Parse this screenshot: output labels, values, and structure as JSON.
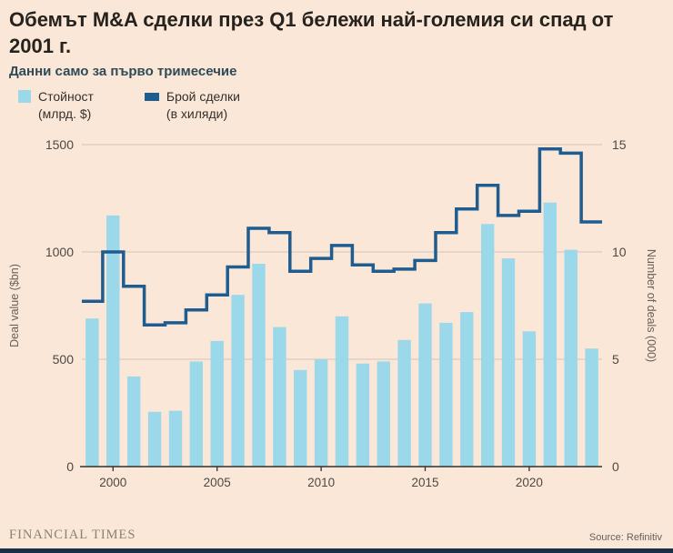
{
  "header": {
    "title": "Обемът M&A сделки през Q1 бележи най-големия си спад от 2001 г.",
    "subtitle": "Данни само за първо тримесечие"
  },
  "legend": [
    {
      "label": "Стойност",
      "sublabel": "(млрд. $)"
    },
    {
      "label": "Брой сделки",
      "sublabel": "(в хиляди)"
    }
  ],
  "footer": {
    "brand": "FINANCIAL TIMES",
    "source": "Source: Refinitiv"
  },
  "colors": {
    "background": "#FBE7D7",
    "bar": "#9BD8EA",
    "line": "#1F5C8F",
    "grid": "#CFC4B9",
    "axis": "#33302E",
    "tick_text": "#4D4843",
    "axis_title": "#66605C",
    "title_text": "#26221E",
    "subtitle_text": "#2E4B57",
    "footer_bar": "#1A2E45"
  },
  "chart_data": {
    "type": "bar",
    "x": [
      1999,
      2000,
      2001,
      2002,
      2003,
      2004,
      2005,
      2006,
      2007,
      2008,
      2009,
      2010,
      2011,
      2012,
      2013,
      2014,
      2015,
      2016,
      2017,
      2018,
      2019,
      2020,
      2021,
      2022,
      2023
    ],
    "series": [
      {
        "name": "Стойност (млрд. $)",
        "type": "bar",
        "axis": "left",
        "values": [
          690,
          1170,
          420,
          255,
          260,
          490,
          585,
          800,
          945,
          650,
          450,
          500,
          700,
          480,
          490,
          590,
          760,
          670,
          720,
          1130,
          970,
          630,
          1230,
          1010,
          550
        ]
      },
      {
        "name": "Брой сделки (в хиляди)",
        "type": "step-line",
        "axis": "right",
        "values": [
          7.7,
          10.0,
          8.4,
          6.6,
          6.7,
          7.3,
          8.0,
          9.3,
          11.1,
          10.9,
          9.1,
          9.7,
          10.3,
          9.4,
          9.1,
          9.2,
          9.6,
          10.9,
          12.0,
          13.1,
          11.7,
          11.9,
          14.8,
          14.6,
          11.4
        ]
      }
    ],
    "left_axis": {
      "label": "Deal value ($bn)",
      "ticks": [
        0,
        500,
        1000,
        1500
      ],
      "range": [
        0,
        1500
      ]
    },
    "right_axis": {
      "label": "Number of deals (000)",
      "ticks": [
        0,
        5,
        10,
        15
      ],
      "range": [
        0,
        15
      ]
    },
    "x_ticks": [
      2000,
      2005,
      2010,
      2015,
      2020
    ],
    "grid": true,
    "legend_position": "top-left"
  }
}
